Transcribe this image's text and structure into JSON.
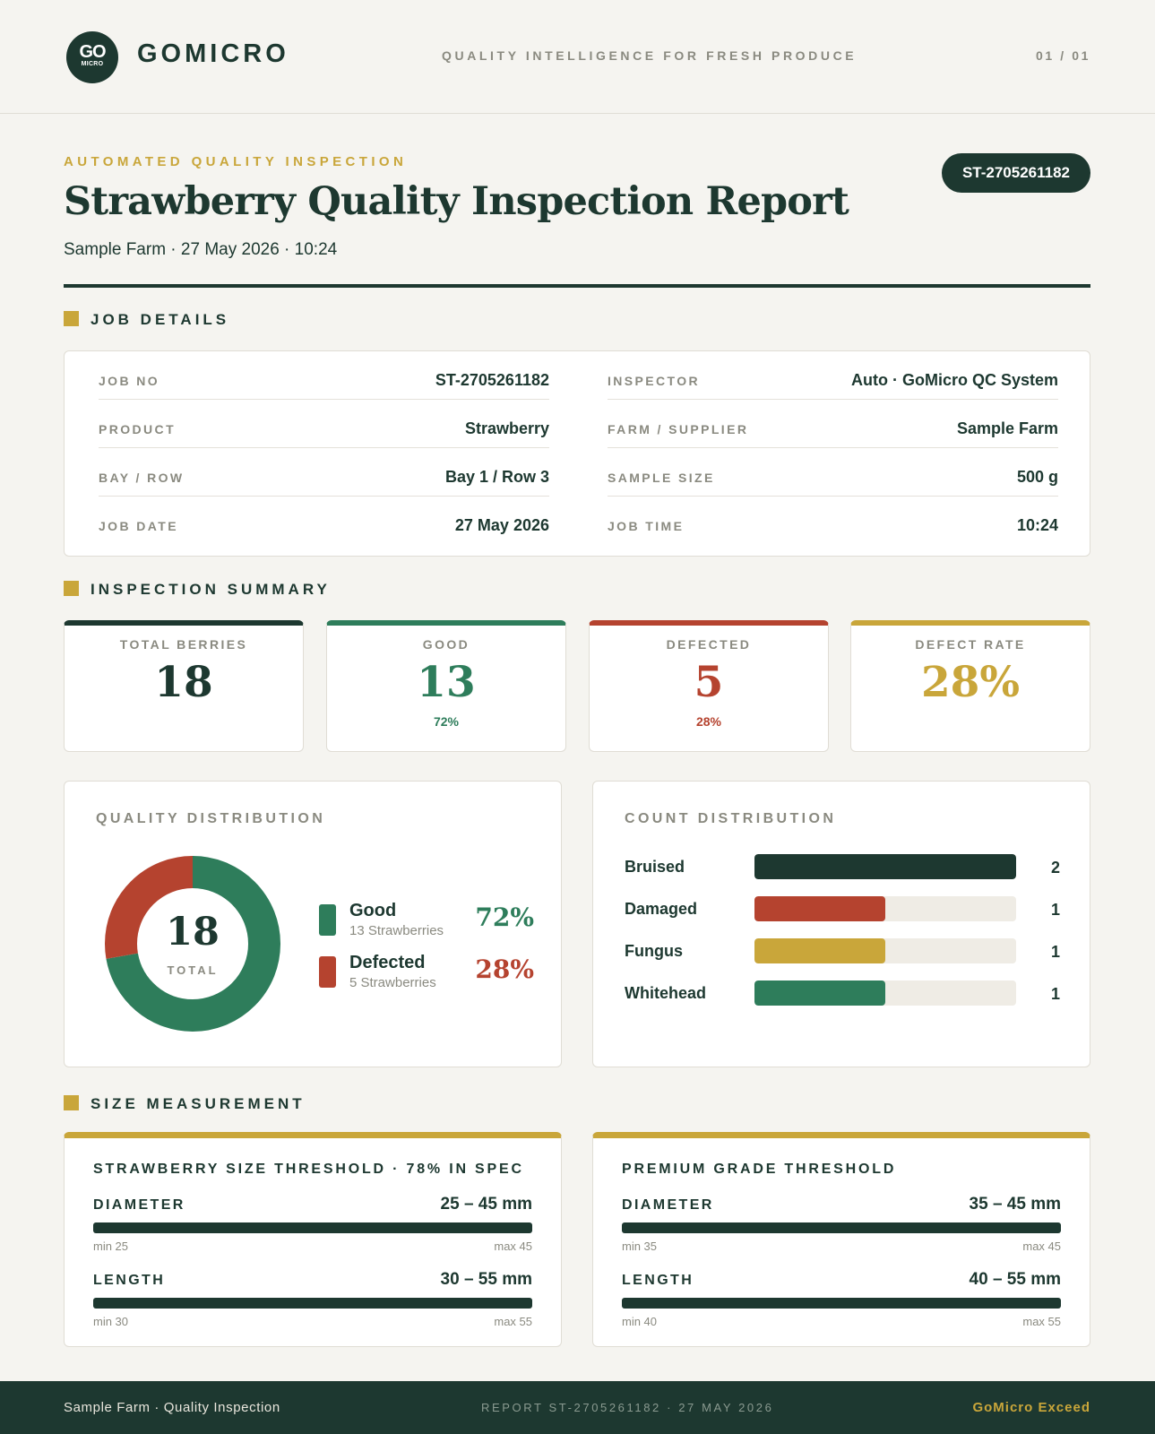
{
  "header": {
    "logo_top": "GO",
    "logo_bottom": "MICRO",
    "brand": "GOMICRO",
    "tagline": "QUALITY INTELLIGENCE FOR FRESH PRODUCE",
    "page": "01 / 01"
  },
  "report": {
    "eyebrow": "AUTOMATED QUALITY INSPECTION",
    "title": "Strawberry Quality Inspection Report",
    "subtitle": "Sample Farm · 27 May 2026 · 10:24",
    "id": "ST-2705261182"
  },
  "sections": {
    "job_details": "JOB DETAILS",
    "inspection_summary": "INSPECTION SUMMARY",
    "size_measurement": "SIZE MEASUREMENT"
  },
  "job_details": {
    "left": [
      {
        "label": "JOB NO",
        "value": "ST-2705261182"
      },
      {
        "label": "PRODUCT",
        "value": "Strawberry"
      },
      {
        "label": "BAY / ROW",
        "value": "Bay 1 / Row 3"
      },
      {
        "label": "JOB DATE",
        "value": "27 May 2026"
      }
    ],
    "right": [
      {
        "label": "INSPECTOR",
        "value": "Auto · GoMicro QC System"
      },
      {
        "label": "FARM / SUPPLIER",
        "value": "Sample Farm"
      },
      {
        "label": "SAMPLE SIZE",
        "value": "500 g"
      },
      {
        "label": "JOB TIME",
        "value": "10:24"
      }
    ]
  },
  "summary": [
    {
      "label": "TOTAL BERRIES",
      "value": "18",
      "pct": "",
      "color": "#1d3830"
    },
    {
      "label": "GOOD",
      "value": "13",
      "pct": "72%",
      "color": "#2e7d5b"
    },
    {
      "label": "DEFECTED",
      "value": "5",
      "pct": "28%",
      "color": "#b5432f"
    },
    {
      "label": "DEFECT RATE",
      "value": "28%",
      "pct": "",
      "color": "#c9a63a"
    }
  ],
  "quality_distribution": {
    "title": "QUALITY DISTRIBUTION",
    "total": "18",
    "total_label": "TOTAL",
    "items": [
      {
        "name": "Good",
        "sub": "13 Strawberries",
        "pct": "72%",
        "value": 13,
        "color": "#2e7d5b"
      },
      {
        "name": "Defected",
        "sub": "5 Strawberries",
        "pct": "28%",
        "value": 5,
        "color": "#b5432f"
      }
    ]
  },
  "count_distribution": {
    "title": "COUNT DISTRIBUTION",
    "max": 2,
    "items": [
      {
        "name": "Bruised",
        "count": "2",
        "value": 2,
        "color": "#1d3830"
      },
      {
        "name": "Damaged",
        "count": "1",
        "value": 1,
        "color": "#b5432f"
      },
      {
        "name": "Fungus",
        "count": "1",
        "value": 1,
        "color": "#c9a63a"
      },
      {
        "name": "Whitehead",
        "count": "1",
        "value": 1,
        "color": "#2e7d5b"
      }
    ]
  },
  "size": [
    {
      "title": "STRAWBERRY SIZE THRESHOLD · 78% IN SPEC",
      "rows": [
        {
          "name": "DIAMETER",
          "range": "25 – 45 mm",
          "min": "min 25",
          "max": "max 45"
        },
        {
          "name": "LENGTH",
          "range": "30 – 55 mm",
          "min": "min 30",
          "max": "max 55"
        }
      ]
    },
    {
      "title": "PREMIUM GRADE THRESHOLD",
      "rows": [
        {
          "name": "DIAMETER",
          "range": "35 – 45 mm",
          "min": "min 35",
          "max": "max 45"
        },
        {
          "name": "LENGTH",
          "range": "40 – 55 mm",
          "min": "min 40",
          "max": "max 55"
        }
      ]
    }
  ],
  "footer": {
    "left": "Sample Farm · Quality Inspection",
    "mid": "REPORT ST-2705261182 · 27 MAY 2026",
    "right": "GoMicro Exceed"
  }
}
